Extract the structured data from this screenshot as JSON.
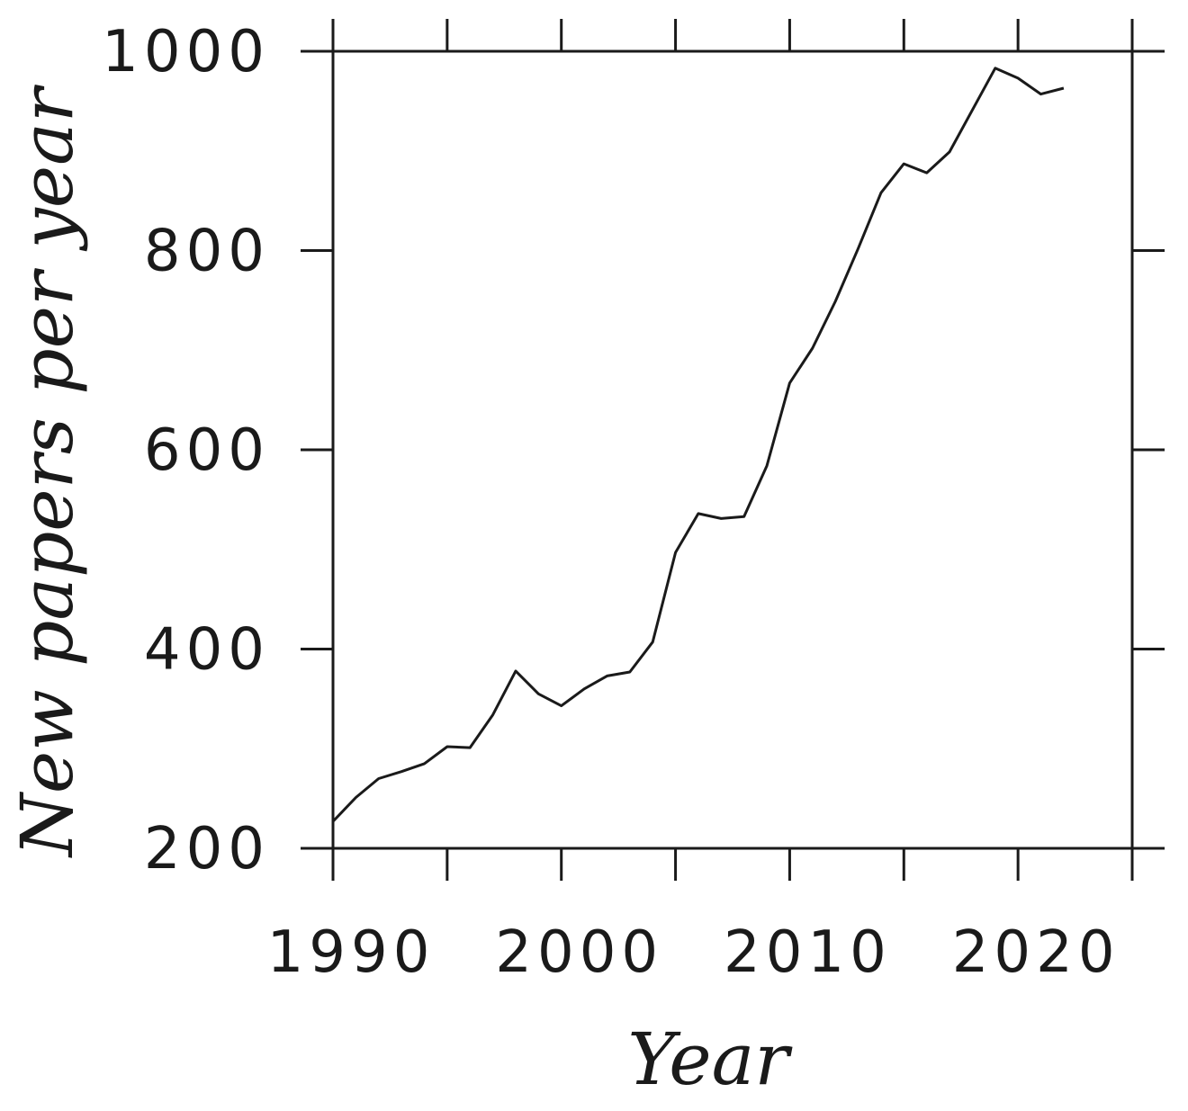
{
  "chart_data": {
    "type": "line",
    "title": "",
    "xlabel": "Year",
    "ylabel": "New papers per year",
    "xlim": [
      1990,
      2025
    ],
    "ylim": [
      200,
      1000
    ],
    "xticks": [
      1990,
      1995,
      2000,
      2005,
      2010,
      2015,
      2020,
      2025
    ],
    "xtick_labels": [
      {
        "value": 1990,
        "label": "1990"
      },
      {
        "value": 2000,
        "label": "2000"
      },
      {
        "value": 2010,
        "label": "2010"
      },
      {
        "value": 2020,
        "label": "2020"
      }
    ],
    "yticks": [
      200,
      400,
      600,
      800,
      1000
    ],
    "ytick_labels": [
      {
        "value": 200,
        "label": "200"
      },
      {
        "value": 400,
        "label": "400"
      },
      {
        "value": 600,
        "label": "600"
      },
      {
        "value": 800,
        "label": "800"
      },
      {
        "value": 1000,
        "label": "1000"
      }
    ],
    "grid": false,
    "series": [
      {
        "x": [
          1990,
          1991,
          1992,
          1993,
          1994,
          1995,
          1996,
          1997,
          1998,
          1999,
          2000,
          2001,
          2002,
          2003,
          2004,
          2005,
          2006,
          2007,
          2008,
          2009,
          2010,
          2011,
          2012,
          2013,
          2014,
          2015,
          2016,
          2017,
          2018,
          2019,
          2020,
          2021,
          2022
        ],
        "y": [
          227,
          251,
          270,
          277,
          285,
          302,
          301,
          334,
          378,
          355,
          343,
          360,
          373,
          377,
          407,
          497,
          536,
          531,
          533,
          584,
          667,
          702,
          749,
          802,
          858,
          887,
          878,
          899,
          941,
          983,
          973,
          957,
          963
        ]
      }
    ]
  }
}
